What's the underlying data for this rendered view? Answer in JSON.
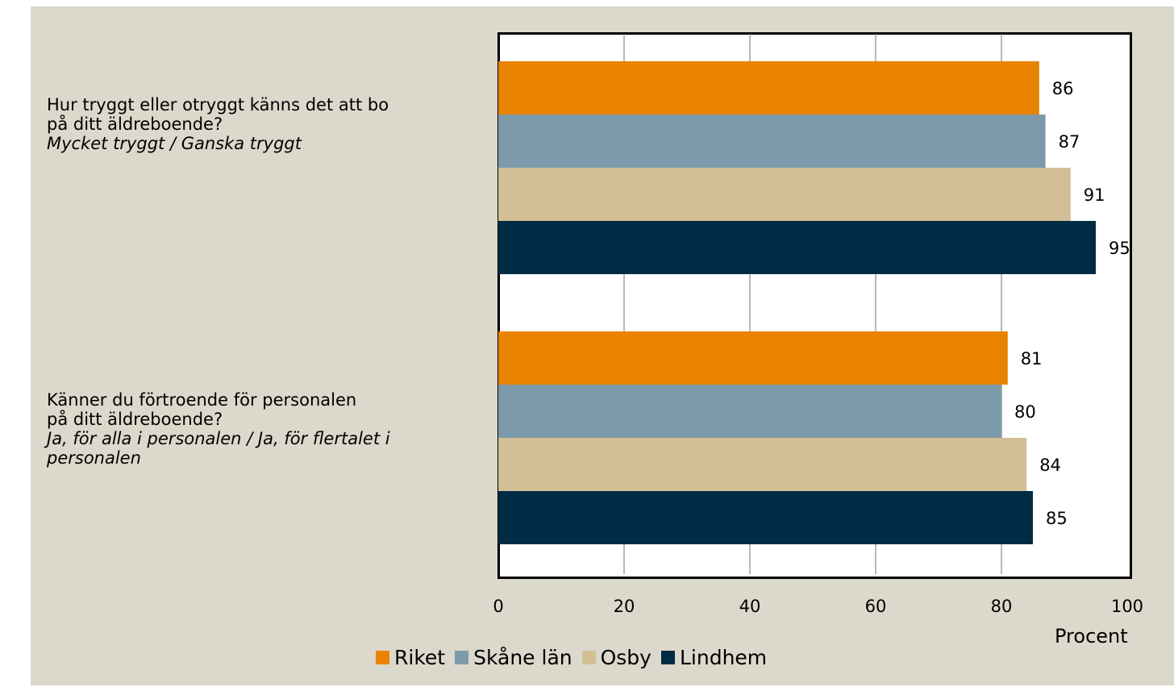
{
  "chart_data": {
    "type": "bar",
    "orientation": "horizontal",
    "categories": [
      {
        "question": "Hur tryggt eller otryggt känns det att bo på ditt äldreboende?",
        "question_line1": "Hur tryggt eller otryggt känns det att bo",
        "question_line2": "på ditt äldreboende?",
        "answer_line1": "Mycket tryggt / Ganska tryggt",
        "answer_line2": ""
      },
      {
        "question": "Känner du förtroende för personalen på ditt äldreboende?",
        "question_line1": "Känner du förtroende för personalen",
        "question_line2": "på ditt äldreboende?",
        "answer_line1": "Ja, för alla i personalen / Ja, för flertalet i",
        "answer_line2": "personalen"
      }
    ],
    "series": [
      {
        "name": "Riket",
        "color": "#e98300",
        "values": [
          86,
          81
        ]
      },
      {
        "name": "Skåne län",
        "color": "#7d9aab",
        "values": [
          87,
          80
        ]
      },
      {
        "name": "Osby",
        "color": "#d3bf95",
        "values": [
          91,
          84
        ]
      },
      {
        "name": "Lindhem",
        "color": "#002b45",
        "values": [
          95,
          85
        ]
      }
    ],
    "xlim": [
      0,
      100
    ],
    "xticks": [
      "0",
      "20",
      "40",
      "60",
      "80",
      "100"
    ],
    "xlabel": "Procent",
    "grid": true,
    "legend_position": "bottom"
  }
}
